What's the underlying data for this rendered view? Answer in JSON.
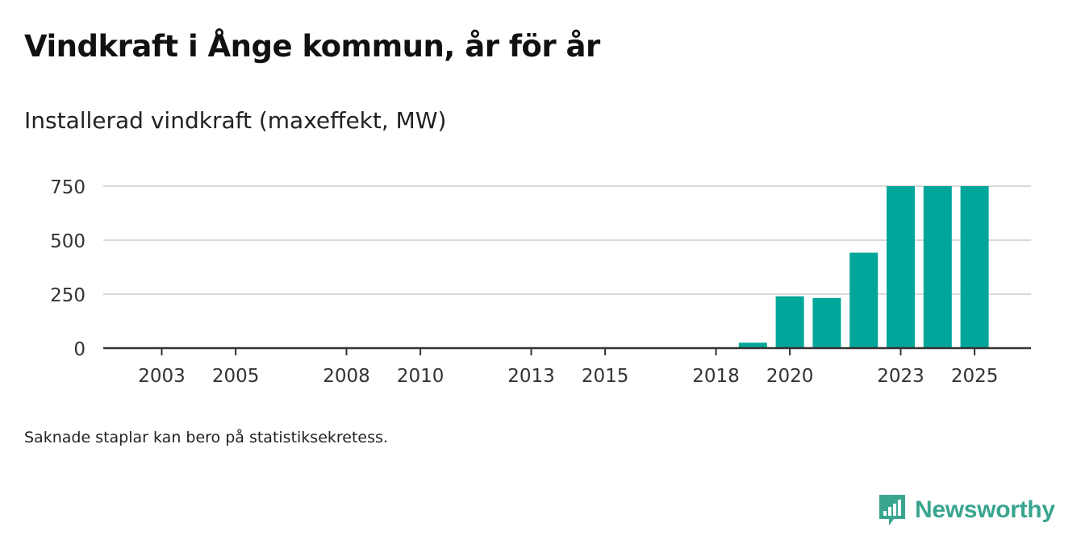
{
  "title": "Vindkraft i Ånge kommun, år för år",
  "subtitle": "Installerad vindkraft (maxeffekt, MW)",
  "footnote": "Saknade staplar kan bero på statistiksekretess.",
  "brand": {
    "name": "Newsworthy",
    "color": "#3aa58f",
    "icon": "newsworthy-logo-icon"
  },
  "chart_data": {
    "type": "bar",
    "title": "Vindkraft i Ånge kommun, år för år",
    "subtitle": "Installerad vindkraft (maxeffekt, MW)",
    "xlabel": "",
    "ylabel": "",
    "x_range": [
      2002,
      2026
    ],
    "ylim": [
      0,
      800
    ],
    "grid": true,
    "bar_color": "#00a69a",
    "yticks": [
      0,
      250,
      500,
      750
    ],
    "xticks": [
      2003,
      2005,
      2008,
      2010,
      2013,
      2015,
      2018,
      2020,
      2023,
      2025
    ],
    "categories": [
      2019,
      2020,
      2021,
      2022,
      2023,
      2024,
      2025
    ],
    "values": [
      25,
      240,
      232,
      442,
      750,
      750,
      750
    ]
  }
}
